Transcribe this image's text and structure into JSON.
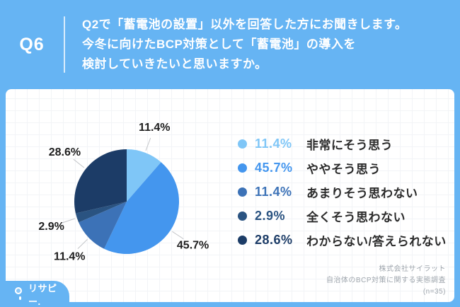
{
  "page": {
    "accent_blue": "#66B4F3",
    "card_background": "#FFFFFF"
  },
  "header": {
    "question_number": "Q6",
    "question_lines": [
      "Q2で「蓄電池の設置」以外を回答した方にお聞きします。",
      "今冬に向けたBCP対策として「蓄電池」の導入を",
      "検討していきたいと思いますか。"
    ]
  },
  "chart_data": {
    "type": "pie",
    "title": "",
    "unit": "%",
    "direction": "clockwise",
    "start_angle_deg": 0,
    "legend_position": "right",
    "labels": [
      "非常にそう思う",
      "ややそう思う",
      "あまりそう思わない",
      "全くそう思わない",
      "わからない/答えられない"
    ],
    "values": [
      11.4,
      45.7,
      11.4,
      2.9,
      28.6
    ],
    "value_labels": [
      "11.4%",
      "45.7%",
      "11.4%",
      "2.9%",
      "28.6%"
    ],
    "colors": [
      "#7FC6F7",
      "#4496EE",
      "#3C72B7",
      "#2A5381",
      "#1C3C67"
    ],
    "n": 35
  },
  "footer": {
    "source_lines": [
      "株式会社サイラット",
      "自治体のBCP対策に関する実態調査",
      "(n=35)"
    ],
    "logo_text": "リサピー."
  }
}
